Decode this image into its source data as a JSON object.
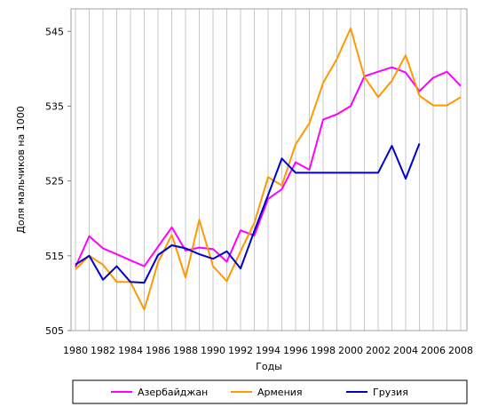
{
  "chart_data": {
    "type": "line",
    "title": "",
    "xlabel": "Годы",
    "ylabel": "Доля мальчиков на 1000",
    "xlim": [
      1980,
      2008
    ],
    "ylim": [
      505,
      548
    ],
    "yticks": [
      505,
      515,
      525,
      535,
      545
    ],
    "xticks": [
      1980,
      1982,
      1984,
      1986,
      1988,
      1990,
      1992,
      1994,
      1996,
      1998,
      2000,
      2002,
      2004,
      2006,
      2008
    ],
    "grid": "vertical",
    "legend_position": "bottom",
    "series": [
      {
        "name": "Азербайджан",
        "color": "#ff00ff",
        "x": [
          1980,
          1981,
          1982,
          1983,
          1984,
          1985,
          1986,
          1987,
          1988,
          1989,
          1990,
          1991,
          1992,
          1993,
          1994,
          1995,
          1996,
          1997,
          1998,
          1999,
          2000,
          2001,
          2002,
          2003,
          2004,
          2005,
          2006,
          2007,
          2008
        ],
        "y": [
          513.5,
          517.6,
          516.0,
          515.2,
          514.4,
          513.6,
          516.2,
          518.8,
          515.7,
          516.1,
          515.9,
          514.2,
          518.4,
          517.7,
          522.6,
          523.9,
          527.5,
          526.5,
          533.2,
          533.9,
          535.0,
          539.0,
          539.6,
          540.2,
          539.5,
          537.0,
          538.8,
          539.6,
          537.7
        ]
      },
      {
        "name": "Армения",
        "color": "#ff9900",
        "x": [
          1980,
          1981,
          1982,
          1983,
          1984,
          1985,
          1986,
          1987,
          1988,
          1989,
          1990,
          1991,
          1992,
          1993,
          1994,
          1995,
          1996,
          1997,
          1998,
          1999,
          2000,
          2001,
          2002,
          2003,
          2004,
          2005,
          2006,
          2007,
          2008
        ],
        "y": [
          513.2,
          515.0,
          513.8,
          511.5,
          511.5,
          507.8,
          514.1,
          517.8,
          512.1,
          519.8,
          513.6,
          511.6,
          515.6,
          519.4,
          525.5,
          524.4,
          529.9,
          532.7,
          538.1,
          541.3,
          545.4,
          538.9,
          536.2,
          538.4,
          541.8,
          536.4,
          535.1,
          535.1,
          536.2
        ]
      },
      {
        "name": "Грузия",
        "color": "#0000cc",
        "x": [
          1980,
          1981,
          1982,
          1983,
          1984,
          1985,
          1986,
          1987,
          1988,
          1989,
          1990,
          1991,
          1992,
          1993,
          1994,
          1995,
          1996,
          1997,
          1998,
          1999,
          2000,
          2001,
          2002,
          2003,
          2004,
          2005
        ],
        "y": [
          513.8,
          515.0,
          511.8,
          513.6,
          511.5,
          511.4,
          515.1,
          516.4,
          516.0,
          515.2,
          514.6,
          515.6,
          513.3,
          518.3,
          523.1,
          528.0,
          526.1,
          526.1,
          526.1,
          526.1,
          526.1,
          526.1,
          526.1,
          529.7,
          525.3,
          530.0
        ]
      }
    ]
  }
}
